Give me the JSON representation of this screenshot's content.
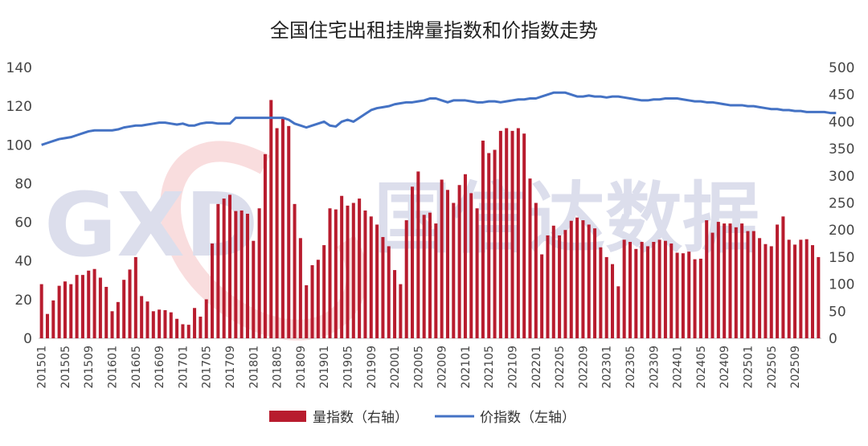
{
  "chart_data": {
    "type": "bar+line",
    "title": "全国住宅出租挂牌量指数和价指数走势",
    "watermark": "国信达数据",
    "watermark_logo": "GXD",
    "left_axis": {
      "min": 0,
      "max": 140,
      "ticks": [
        0,
        20,
        40,
        60,
        80,
        100,
        120,
        140
      ]
    },
    "right_axis": {
      "min": 0,
      "max": 500,
      "ticks": [
        0,
        50,
        100,
        150,
        200,
        250,
        300,
        350,
        400,
        450,
        500
      ]
    },
    "x_tick_labels": [
      "201501",
      "201505",
      "201509",
      "201601",
      "201605",
      "201609",
      "201701",
      "201705",
      "201709",
      "201801",
      "201805",
      "201809",
      "201901",
      "201905",
      "201909",
      "202001",
      "202005",
      "202009",
      "202101",
      "202105",
      "202109",
      "202201",
      "202205",
      "202209",
      "202301",
      "202305",
      "202309",
      "202401",
      "202405",
      "202409",
      "202501",
      "202505",
      "202509"
    ],
    "series": [
      {
        "name": "量指数（右轴）",
        "axis": "right",
        "kind": "bar",
        "color": "#b81c2e",
        "values": [
          100,
          45,
          70,
          97,
          105,
          100,
          117,
          117,
          125,
          128,
          112,
          95,
          50,
          67,
          108,
          127,
          150,
          78,
          68,
          50,
          53,
          52,
          48,
          36,
          26,
          25,
          56,
          40,
          72,
          175,
          248,
          258,
          265,
          235,
          236,
          230,
          180,
          240,
          340,
          440,
          388,
          405,
          392,
          248,
          185,
          98,
          135,
          145,
          172,
          240,
          238,
          263,
          245,
          250,
          258,
          236,
          225,
          210,
          187,
          170,
          126,
          100,
          218,
          280,
          308,
          228,
          232,
          212,
          293,
          274,
          250,
          283,
          303,
          268,
          240,
          365,
          342,
          348,
          383,
          388,
          383,
          388,
          378,
          295,
          250,
          155,
          190,
          208,
          190,
          200,
          217,
          223,
          218,
          210,
          203,
          168,
          150,
          137,
          96,
          182,
          178,
          165,
          178,
          170,
          178,
          182,
          180,
          175,
          158,
          157,
          160,
          146,
          147,
          218,
          195,
          215,
          212,
          212,
          205,
          212,
          198,
          198,
          185,
          174,
          170,
          210,
          225,
          182,
          173,
          182,
          183,
          172,
          150
        ]
      },
      {
        "name": "价指数（左轴）",
        "axis": "left",
        "kind": "line",
        "color": "#4472c4",
        "values": [
          100,
          101,
          102,
          103,
          103.5,
          104,
          105,
          106,
          107,
          107.5,
          107.5,
          107.5,
          107.5,
          108,
          109,
          109.5,
          110,
          110,
          110.5,
          111,
          111.5,
          111.5,
          111,
          110.5,
          111,
          110,
          110,
          111,
          111.5,
          111.5,
          111,
          111,
          111,
          114,
          114,
          114,
          114,
          114,
          114,
          114,
          114,
          114,
          113,
          111,
          110,
          109,
          110,
          111,
          112,
          110,
          109.5,
          112,
          113,
          112,
          114,
          116,
          118,
          119,
          119.5,
          120,
          121,
          121.5,
          122,
          122,
          122.5,
          123,
          124,
          124,
          123,
          122,
          123,
          123,
          123,
          122.5,
          122,
          122,
          122.5,
          122.5,
          122,
          122.5,
          123,
          123.5,
          123.5,
          124,
          124,
          125,
          126,
          127,
          127,
          127,
          126,
          125,
          125,
          125.5,
          125,
          125,
          124.5,
          125,
          125,
          124.5,
          124,
          123.5,
          123,
          123,
          123.5,
          123.5,
          124,
          124,
          124,
          123.5,
          123,
          122.5,
          122.5,
          122,
          122,
          121.5,
          121,
          120.5,
          120.5,
          120.5,
          120,
          120,
          119.5,
          119,
          118.5,
          118.5,
          118,
          118,
          117.5,
          117.5,
          117,
          117,
          117,
          117,
          116.5,
          116.5
        ]
      }
    ]
  }
}
